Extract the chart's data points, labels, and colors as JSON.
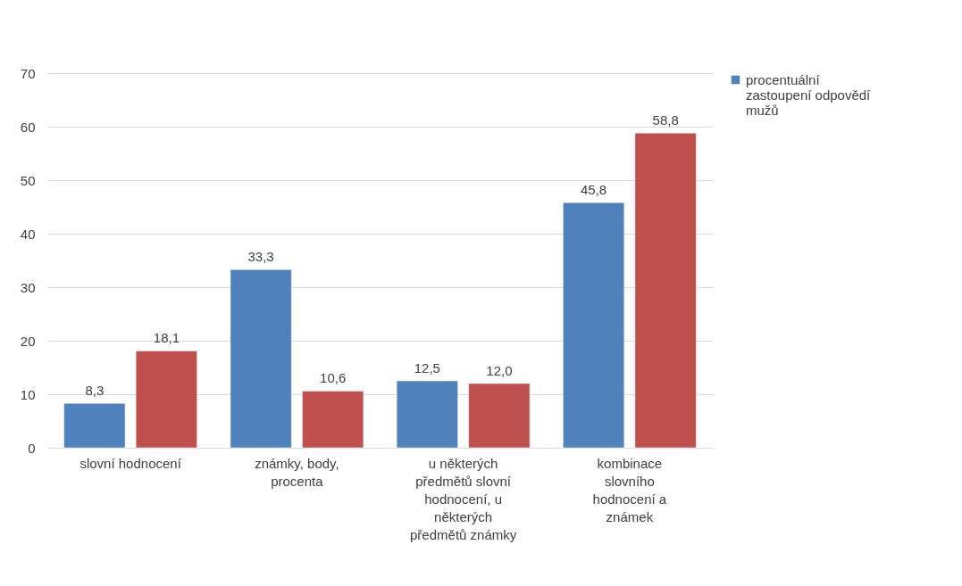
{
  "chart_data": {
    "type": "bar",
    "categories": [
      "slovní hodnocení",
      "známky, body, procenta",
      "u některých předmětů slovní hodnocení, u některých předmětů známky",
      "kombinace slovního hodnocení a známek"
    ],
    "series": [
      {
        "name": "procentuální zastoupení odpovědí mužů",
        "color": "#4f81bd",
        "values": [
          8.3,
          33.3,
          12.5,
          45.8
        ],
        "value_labels": [
          "8,3",
          "33,3",
          "12,5",
          "45,8"
        ]
      },
      {
        "color": "#c0504d",
        "values": [
          18.1,
          10.6,
          12.0,
          58.8
        ],
        "value_labels": [
          "18,1",
          "10,6",
          "12,0",
          "58,8"
        ]
      }
    ],
    "ylim": [
      0,
      70
    ],
    "yticks": [
      0,
      10,
      20,
      30,
      40,
      50,
      60,
      70
    ],
    "grid": "y",
    "legend": "right"
  }
}
